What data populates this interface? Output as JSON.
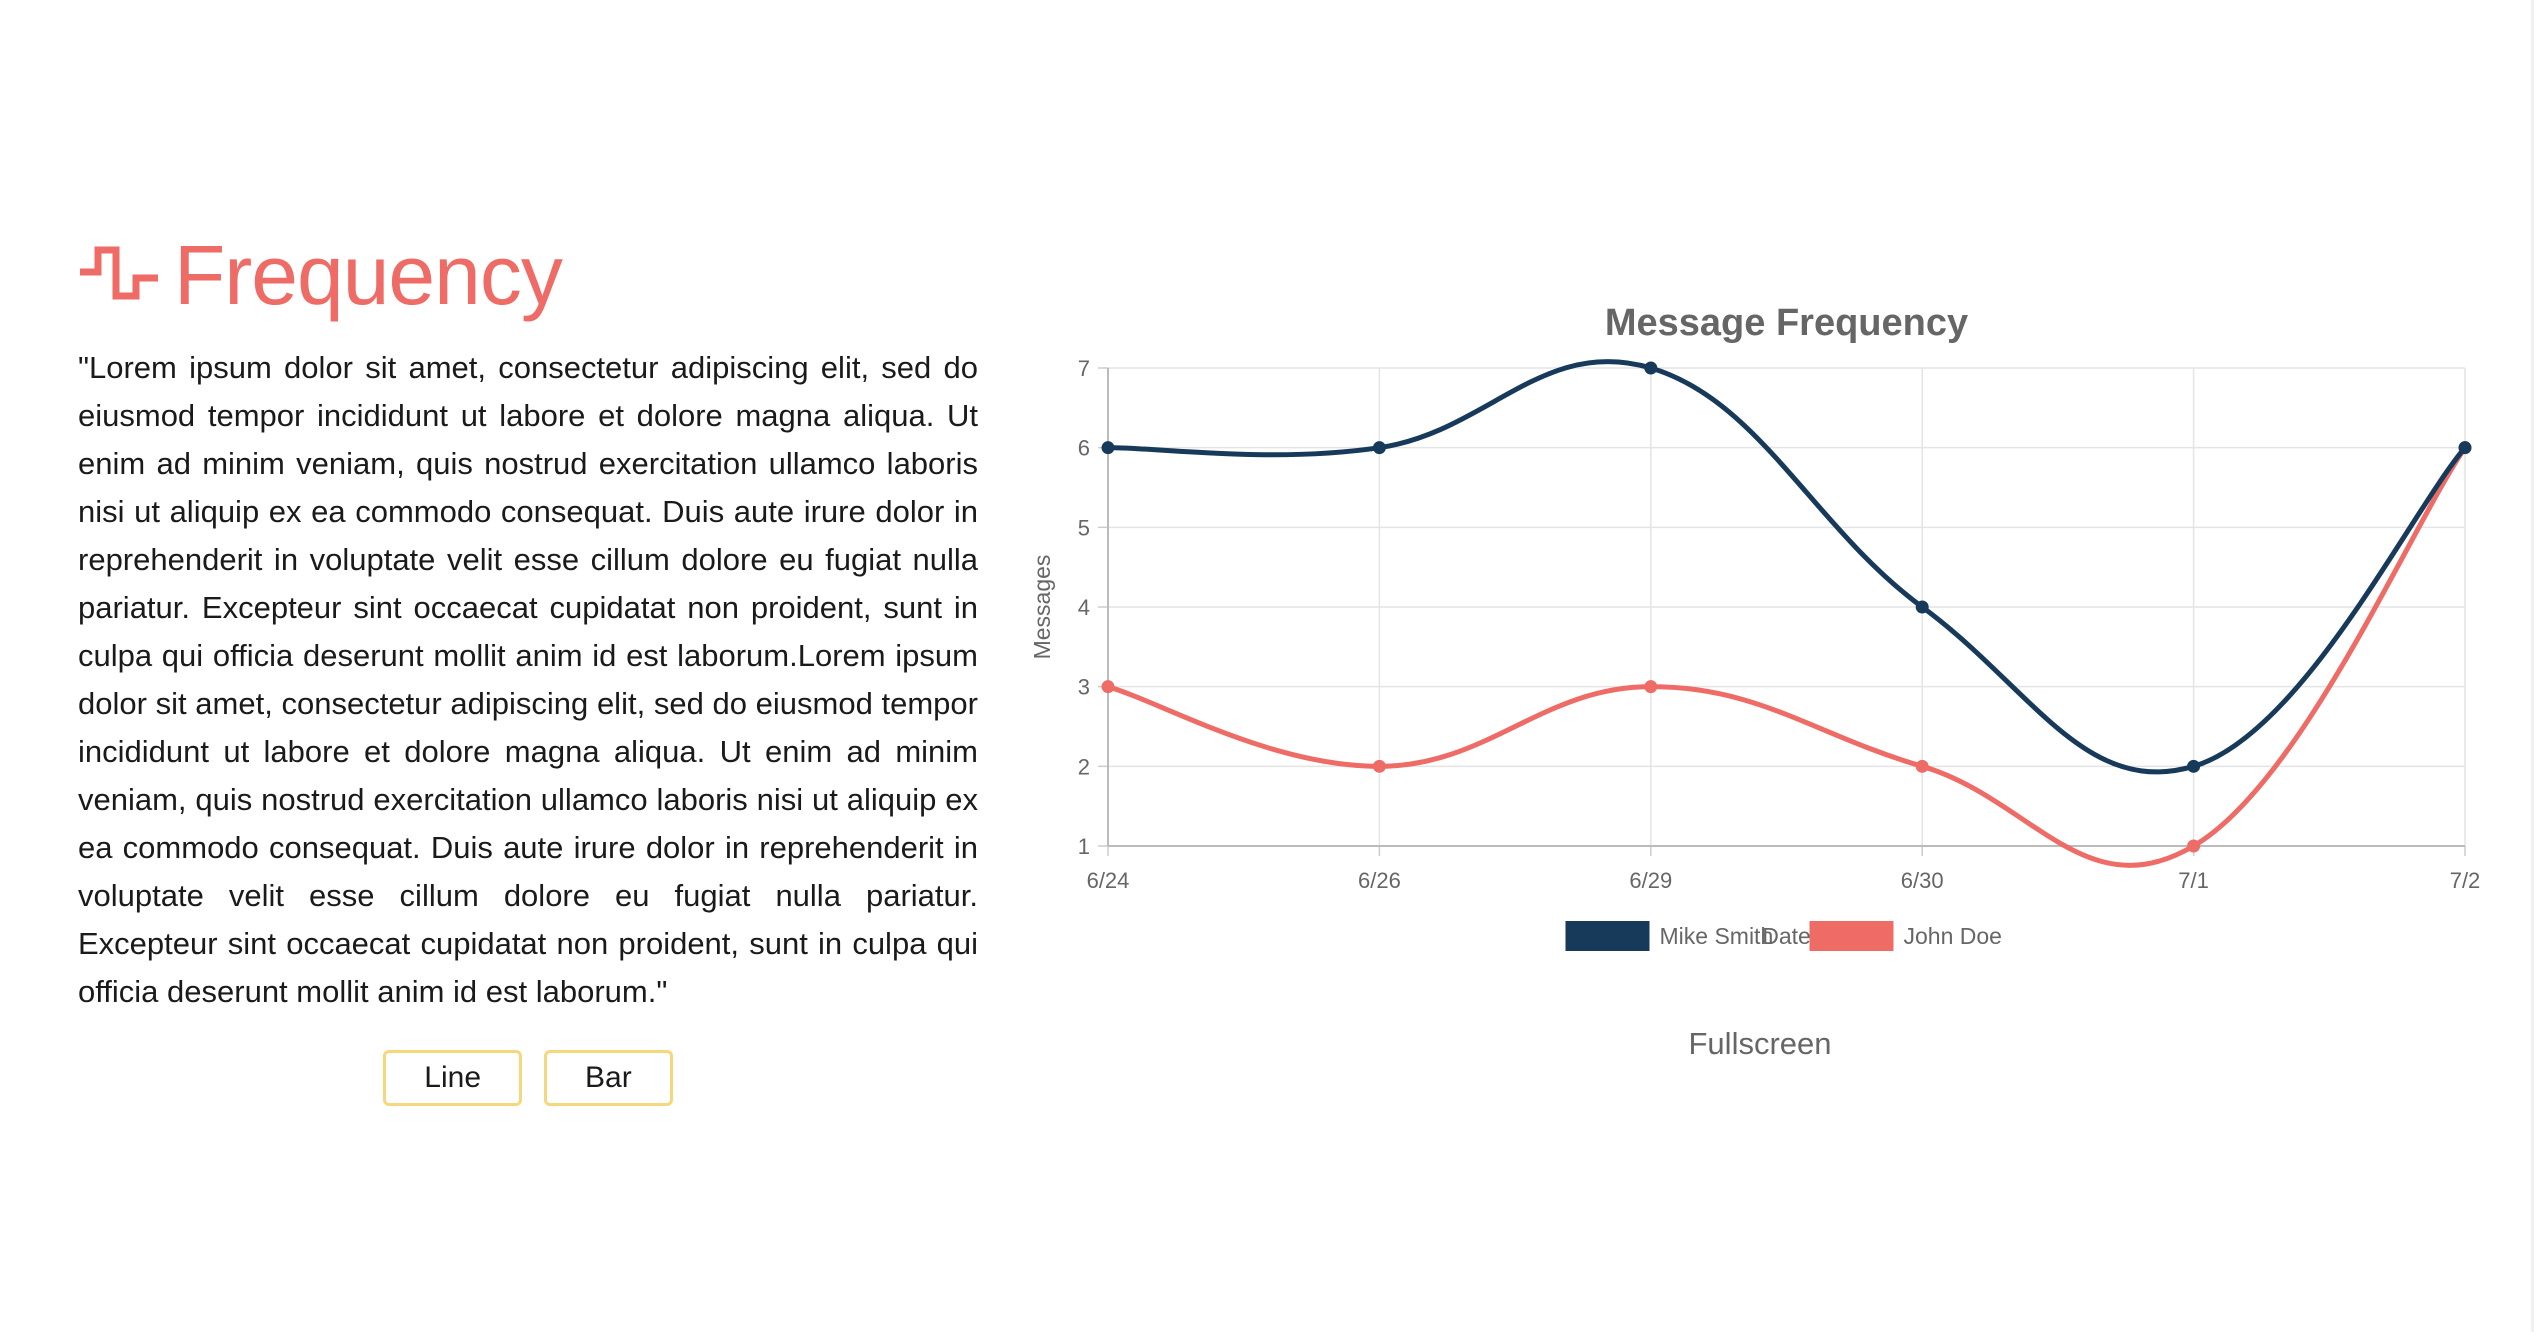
{
  "header": {
    "title": "Frequency",
    "icon": "pulse-wave-icon"
  },
  "description": "\"Lorem ipsum dolor sit amet, consectetur adipiscing elit, sed do eiusmod tempor incididunt ut labore et dolore magna aliqua. Ut enim ad minim veniam, quis nostrud exercitation ullamco laboris nisi ut aliquip ex ea commodo consequat. Duis aute irure dolor in reprehenderit in voluptate velit esse cillum dolore eu fugiat nulla pariatur. Excepteur sint occaecat cupidatat non proident, sunt in culpa qui officia deserunt mollit anim id est laborum.Lorem ipsum dolor sit amet, consectetur adipiscing elit, sed do eiusmod tempor incididunt ut labore et dolore magna aliqua. Ut enim ad minim veniam, quis nostrud exercitation ullamco laboris nisi ut aliquip ex ea commodo consequat. Duis aute irure dolor in reprehenderit in voluptate velit esse cillum dolore eu fugiat nulla pariatur. Excepteur sint occaecat cupidatat non proident, sunt in culpa qui officia deserunt mollit anim id est laborum.\"",
  "buttons": {
    "line_label": "Line",
    "bar_label": "Bar"
  },
  "fullscreen_label": "Fullscreen",
  "colors": {
    "accent": "#ee6b66",
    "button_border": "#f5d87d",
    "series_1": "#173a5a",
    "series_2": "#ee6b66"
  },
  "chart_data": {
    "type": "line",
    "title": "Message Frequency",
    "xlabel": "Date",
    "ylabel": "Messages",
    "categories": [
      "6/24",
      "6/26",
      "6/29",
      "6/30",
      "7/1",
      "7/2"
    ],
    "ylim": [
      1,
      7
    ],
    "yticks": [
      "1",
      "2",
      "3",
      "4",
      "5",
      "6",
      "7"
    ],
    "grid": true,
    "legend_position": "bottom",
    "series": [
      {
        "name": "Mike Smith",
        "color": "#173a5a",
        "values": [
          6,
          6,
          7,
          4,
          2,
          6
        ]
      },
      {
        "name": "John Doe",
        "color": "#ee6b66",
        "values": [
          3,
          2,
          3,
          2,
          1,
          6
        ]
      }
    ]
  }
}
